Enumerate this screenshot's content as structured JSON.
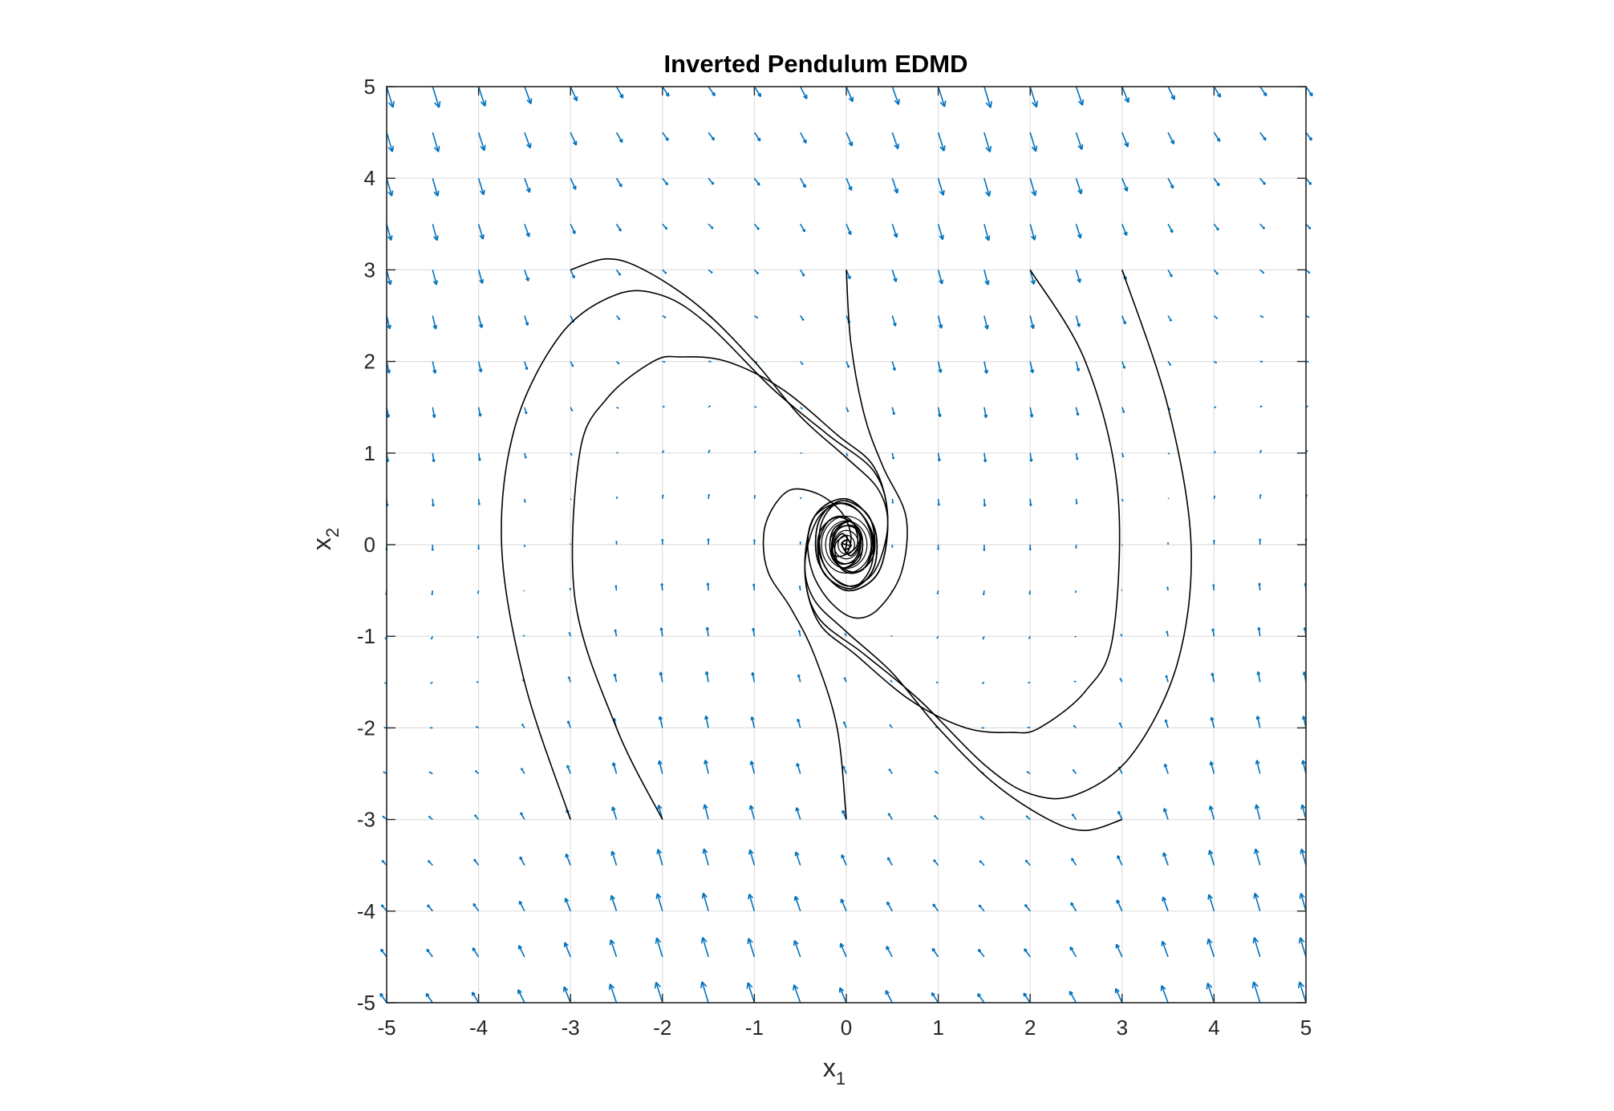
{
  "chart_data": {
    "type": "quiver+line",
    "title": "Inverted Pendulum EDMD",
    "xlabel": {
      "base": "x",
      "subscript": "1"
    },
    "ylabel": {
      "base": "x",
      "subscript": "2"
    },
    "xlim": [
      -5,
      5
    ],
    "ylim": [
      -5,
      5
    ],
    "xticks": [
      "-5",
      "-4",
      "-3",
      "-2",
      "-1",
      "0",
      "1",
      "2",
      "3",
      "4",
      "5"
    ],
    "yticks": [
      "5",
      "4",
      "3",
      "2",
      "1",
      "0",
      "-1",
      "-2",
      "-3",
      "-4",
      "-5"
    ],
    "grid": true,
    "box": true,
    "colors": {
      "quiver": "#0072BD",
      "trajectory": "#000000",
      "grid": "#dfdfdf",
      "axis": "#262626"
    },
    "quiver_field": {
      "description": "vector field dx1/dt = x2, dx2/dt = -sin(x1) - 0.5*x2",
      "x_range": [
        -5,
        5
      ],
      "y_range": [
        -5,
        5
      ],
      "step": 0.5
    },
    "trajectories": [
      {
        "start": [
          -3,
          3
        ],
        "points": [
          [
            -3,
            3
          ],
          [
            -2.6,
            3.12
          ],
          [
            -2.2,
            3.0
          ],
          [
            -1.6,
            2.6
          ],
          [
            -1.0,
            2.0
          ],
          [
            -0.5,
            1.4
          ],
          [
            0,
            0.95
          ],
          [
            0.35,
            0.6
          ],
          [
            0.45,
            0.2
          ],
          [
            0.3,
            -0.3
          ],
          [
            0.0,
            -0.45
          ],
          [
            -0.25,
            -0.2
          ],
          [
            -0.28,
            0.2
          ],
          [
            -0.1,
            0.45
          ],
          [
            0.15,
            0.35
          ],
          [
            0.3,
            0.05
          ],
          [
            0.2,
            -0.25
          ],
          [
            0,
            -0.3
          ],
          [
            -0.15,
            -0.1
          ],
          [
            -0.12,
            0.15
          ],
          [
            0.05,
            0.25
          ],
          [
            0.15,
            0.05
          ],
          [
            0.05,
            -0.12
          ],
          [
            -0.05,
            0
          ],
          [
            0,
            0.05
          ],
          [
            0,
            0
          ]
        ]
      },
      {
        "start": [
          -3,
          -3
        ],
        "points": [
          [
            -3,
            -3
          ],
          [
            -3.5,
            -1.5
          ],
          [
            -3.75,
            0
          ],
          [
            -3.6,
            1.3
          ],
          [
            -3.1,
            2.3
          ],
          [
            -2.5,
            2.73
          ],
          [
            -2.0,
            2.72
          ],
          [
            -1.5,
            2.4
          ],
          [
            -0.8,
            1.7
          ],
          [
            -0.2,
            1.2
          ],
          [
            0.3,
            0.8
          ],
          [
            0.45,
            0.3
          ],
          [
            0.35,
            -0.3
          ],
          [
            0.0,
            -0.5
          ],
          [
            -0.3,
            -0.2
          ],
          [
            -0.3,
            0.25
          ],
          [
            -0.05,
            0.48
          ],
          [
            0.25,
            0.3
          ],
          [
            0.3,
            -0.1
          ],
          [
            0.1,
            -0.3
          ],
          [
            -0.15,
            -0.15
          ],
          [
            -0.15,
            0.15
          ],
          [
            0.05,
            0.25
          ],
          [
            0.15,
            0.05
          ],
          [
            0.05,
            -0.12
          ],
          [
            -0.05,
            0
          ],
          [
            0,
            0
          ]
        ]
      },
      {
        "start": [
          -2,
          -3
        ],
        "points": [
          [
            -2,
            -3
          ],
          [
            -2.5,
            -2.0
          ],
          [
            -2.95,
            -0.6
          ],
          [
            -2.9,
            1.0
          ],
          [
            -2.6,
            1.6
          ],
          [
            -2.1,
            2.0
          ],
          [
            -1.8,
            2.05
          ],
          [
            -1.3,
            2.0
          ],
          [
            -0.7,
            1.7
          ],
          [
            -0.1,
            1.2
          ],
          [
            0.3,
            0.85
          ],
          [
            0.45,
            0.3
          ],
          [
            0.35,
            -0.3
          ],
          [
            0.0,
            -0.5
          ],
          [
            -0.3,
            -0.2
          ],
          [
            -0.3,
            0.25
          ],
          [
            -0.05,
            0.48
          ],
          [
            0.25,
            0.3
          ],
          [
            0.3,
            -0.1
          ],
          [
            0.1,
            -0.3
          ],
          [
            -0.15,
            -0.15
          ],
          [
            -0.1,
            0.15
          ],
          [
            0.08,
            0.2
          ],
          [
            0.12,
            0
          ],
          [
            0,
            -0.1
          ],
          [
            0,
            0
          ]
        ]
      },
      {
        "start": [
          0,
          -3
        ],
        "points": [
          [
            0,
            -3
          ],
          [
            -0.1,
            -2.0
          ],
          [
            -0.35,
            -1.2
          ],
          [
            -0.6,
            -0.7
          ],
          [
            -0.85,
            -0.3
          ],
          [
            -0.9,
            0.1
          ],
          [
            -0.8,
            0.4
          ],
          [
            -0.6,
            0.6
          ],
          [
            -0.3,
            0.55
          ],
          [
            -0.05,
            0.35
          ],
          [
            0.05,
            0.1
          ],
          [
            0,
            -0.1
          ],
          [
            -0.15,
            -0.1
          ],
          [
            -0.12,
            0.15
          ],
          [
            0.05,
            0.25
          ],
          [
            0.15,
            0.05
          ],
          [
            0.05,
            -0.12
          ],
          [
            -0.05,
            0
          ],
          [
            0,
            0.05
          ],
          [
            0,
            0
          ]
        ]
      },
      {
        "start": [
          0,
          3
        ],
        "points": [
          [
            0,
            3
          ],
          [
            0.05,
            2.2
          ],
          [
            0.2,
            1.4
          ],
          [
            0.4,
            0.85
          ],
          [
            0.65,
            0.3
          ],
          [
            0.6,
            -0.3
          ],
          [
            0.35,
            -0.7
          ],
          [
            0.1,
            -0.8
          ],
          [
            -0.15,
            -0.65
          ],
          [
            -0.35,
            -0.35
          ],
          [
            -0.42,
            0.0
          ],
          [
            -0.35,
            0.3
          ],
          [
            -0.1,
            0.45
          ],
          [
            0.15,
            0.35
          ],
          [
            0.28,
            0.05
          ],
          [
            0.2,
            -0.25
          ],
          [
            0,
            -0.3
          ],
          [
            -0.15,
            -0.1
          ],
          [
            -0.12,
            0.15
          ],
          [
            0.05,
            0.25
          ],
          [
            0.15,
            0.05
          ],
          [
            0.05,
            -0.12
          ],
          [
            -0.05,
            0
          ],
          [
            0,
            0
          ]
        ]
      },
      {
        "start": [
          2,
          3
        ],
        "points": [
          [
            2,
            3
          ],
          [
            2.6,
            2.0
          ],
          [
            2.95,
            0.6
          ],
          [
            2.9,
            -1.0
          ],
          [
            2.6,
            -1.6
          ],
          [
            2.1,
            -2.0
          ],
          [
            1.8,
            -2.05
          ],
          [
            1.3,
            -2.0
          ],
          [
            0.7,
            -1.7
          ],
          [
            0.1,
            -1.2
          ],
          [
            -0.3,
            -0.85
          ],
          [
            -0.45,
            -0.3
          ],
          [
            -0.35,
            0.3
          ],
          [
            0.0,
            0.5
          ],
          [
            0.3,
            0.2
          ],
          [
            0.3,
            -0.25
          ],
          [
            0.05,
            -0.48
          ],
          [
            -0.25,
            -0.3
          ],
          [
            -0.3,
            0.1
          ],
          [
            -0.1,
            0.3
          ],
          [
            0.15,
            0.15
          ],
          [
            0.1,
            -0.15
          ],
          [
            -0.08,
            -0.2
          ],
          [
            -0.12,
            0
          ],
          [
            0,
            0.1
          ],
          [
            0,
            0
          ]
        ]
      },
      {
        "start": [
          3,
          3
        ],
        "points": [
          [
            3,
            3
          ],
          [
            3.5,
            1.5
          ],
          [
            3.75,
            0
          ],
          [
            3.6,
            -1.3
          ],
          [
            3.1,
            -2.3
          ],
          [
            2.5,
            -2.73
          ],
          [
            2.0,
            -2.72
          ],
          [
            1.5,
            -2.4
          ],
          [
            0.8,
            -1.7
          ],
          [
            0.2,
            -1.2
          ],
          [
            -0.3,
            -0.8
          ],
          [
            -0.45,
            -0.3
          ],
          [
            -0.35,
            0.3
          ],
          [
            0.0,
            0.5
          ],
          [
            0.3,
            0.2
          ],
          [
            0.3,
            -0.25
          ],
          [
            0.05,
            -0.48
          ],
          [
            -0.25,
            -0.3
          ],
          [
            -0.3,
            0.1
          ],
          [
            -0.1,
            0.3
          ],
          [
            0.15,
            0.15
          ],
          [
            0.15,
            -0.15
          ],
          [
            -0.05,
            -0.25
          ],
          [
            -0.15,
            -0.05
          ],
          [
            -0.05,
            0.12
          ],
          [
            0.05,
            0
          ],
          [
            0,
            0
          ]
        ]
      },
      {
        "start": [
          3,
          -3
        ],
        "points": [
          [
            3,
            -3
          ],
          [
            2.6,
            -3.12
          ],
          [
            2.2,
            -3.0
          ],
          [
            1.6,
            -2.6
          ],
          [
            1.0,
            -2.0
          ],
          [
            0.5,
            -1.4
          ],
          [
            0,
            -0.95
          ],
          [
            -0.35,
            -0.6
          ],
          [
            -0.45,
            -0.2
          ],
          [
            -0.3,
            0.3
          ],
          [
            0.0,
            0.45
          ],
          [
            0.25,
            0.2
          ],
          [
            0.28,
            -0.2
          ],
          [
            0.1,
            -0.45
          ],
          [
            -0.15,
            -0.35
          ],
          [
            -0.3,
            -0.05
          ],
          [
            -0.2,
            0.25
          ],
          [
            0,
            0.3
          ],
          [
            0.15,
            0.1
          ],
          [
            0.12,
            -0.15
          ],
          [
            -0.05,
            -0.25
          ],
          [
            -0.15,
            -0.05
          ],
          [
            -0.05,
            0.12
          ],
          [
            0.05,
            0
          ],
          [
            0,
            -0.05
          ],
          [
            0,
            0
          ]
        ]
      }
    ]
  }
}
